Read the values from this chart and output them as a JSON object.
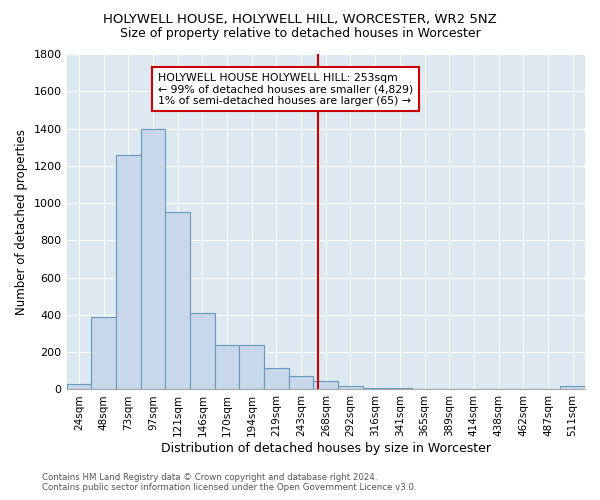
{
  "title": "HOLYWELL HOUSE, HOLYWELL HILL, WORCESTER, WR2 5NZ",
  "subtitle": "Size of property relative to detached houses in Worcester",
  "xlabel": "Distribution of detached houses by size in Worcester",
  "ylabel": "Number of detached properties",
  "bar_color": "#c8d8ea",
  "bar_edge_color": "#6699bb",
  "bg_color": "#dde8f0",
  "grid_color": "white",
  "categories": [
    "24sqm",
    "48sqm",
    "73sqm",
    "97sqm",
    "121sqm",
    "146sqm",
    "170sqm",
    "194sqm",
    "219sqm",
    "243sqm",
    "268sqm",
    "292sqm",
    "316sqm",
    "341sqm",
    "365sqm",
    "389sqm",
    "414sqm",
    "438sqm",
    "462sqm",
    "487sqm",
    "511sqm"
  ],
  "values": [
    30,
    390,
    1260,
    1400,
    950,
    410,
    240,
    240,
    115,
    70,
    45,
    20,
    10,
    8,
    5,
    5,
    5,
    5,
    5,
    5,
    20
  ],
  "vline_color": "#cc0000",
  "annotation_text": "HOLYWELL HOUSE HOLYWELL HILL: 253sqm\n← 99% of detached houses are smaller (4,829)\n1% of semi-detached houses are larger (65) →",
  "annotation_box_color": "#ffffff",
  "annotation_box_edge": "#cc0000",
  "footnote": "Contains HM Land Registry data © Crown copyright and database right 2024.\nContains public sector information licensed under the Open Government Licence v3.0.",
  "ylim": [
    0,
    1800
  ],
  "yticks": [
    0,
    200,
    400,
    600,
    800,
    1000,
    1200,
    1400,
    1600,
    1800
  ],
  "title_fontsize": 9.5,
  "subtitle_fontsize": 9,
  "ylabel_fontsize": 8.5,
  "xlabel_fontsize": 9
}
